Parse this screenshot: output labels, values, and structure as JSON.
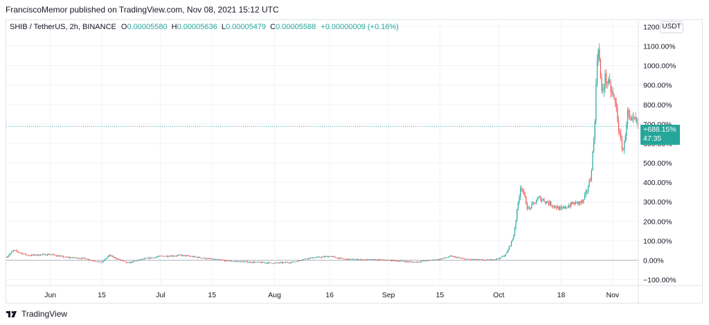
{
  "header": {
    "published_line": "FranciscoMemor published on TradingView.com, Nov 08, 2021 15:12 UTC"
  },
  "legend": {
    "symbol": "SHIB / TetherUS, 2h, BINANCE",
    "open_label": "O",
    "open": "0.00005580",
    "high_label": "H",
    "high": "0.00005636",
    "low_label": "L",
    "low": "0.00005479",
    "close_label": "C",
    "close": "0.00005588",
    "change": "+0.00000009 (+0.16%)"
  },
  "currency_button": "USDT",
  "price_badge": {
    "value": "+688.15%",
    "countdown": "47:35"
  },
  "footer": {
    "brand": "TradingView"
  },
  "colors": {
    "up": "#26a69a",
    "down": "#ef5350",
    "grid": "#f0f3fa",
    "axis_text": "#131722"
  },
  "chart_data": {
    "type": "candlestick",
    "yscale": "percent",
    "ylim": [
      -130,
      1230
    ],
    "y_ticks": [
      -100,
      0,
      100,
      200,
      300,
      400,
      500,
      600,
      700,
      800,
      900,
      1000,
      1100,
      1200
    ],
    "y_tick_labels": [
      "−100.00%",
      "0.00%",
      "100.00%",
      "200.00%",
      "300.00%",
      "400.00%",
      "500.00%",
      "600.00%",
      "700.00%",
      "800.00%",
      "900.00%",
      "1000.00%",
      "1100.00%",
      "1200.00%"
    ],
    "x_range": [
      "2021-05-20",
      "2021-11-08"
    ],
    "x_ticks": [
      {
        "date": "2021-06-01",
        "label": "Jun"
      },
      {
        "date": "2021-06-15",
        "label": "15"
      },
      {
        "date": "2021-07-01",
        "label": "Jul"
      },
      {
        "date": "2021-07-15",
        "label": "15"
      },
      {
        "date": "2021-08-01",
        "label": "Aug"
      },
      {
        "date": "2021-08-16",
        "label": "16"
      },
      {
        "date": "2021-09-01",
        "label": "Sep"
      },
      {
        "date": "2021-09-15",
        "label": "15"
      },
      {
        "date": "2021-10-01",
        "label": "Oct"
      },
      {
        "date": "2021-10-18",
        "label": "18"
      },
      {
        "date": "2021-11-01",
        "label": "Nov"
      }
    ],
    "current_value": 688.15,
    "price_path": [
      {
        "date": "2021-05-20",
        "value": 15
      },
      {
        "date": "2021-05-22",
        "value": 50
      },
      {
        "date": "2021-05-26",
        "value": 25
      },
      {
        "date": "2021-06-01",
        "value": 30
      },
      {
        "date": "2021-06-05",
        "value": 15
      },
      {
        "date": "2021-06-10",
        "value": 10
      },
      {
        "date": "2021-06-15",
        "value": -12
      },
      {
        "date": "2021-06-17",
        "value": 25
      },
      {
        "date": "2021-06-22",
        "value": -15
      },
      {
        "date": "2021-06-26",
        "value": 5
      },
      {
        "date": "2021-07-01",
        "value": 20
      },
      {
        "date": "2021-07-07",
        "value": 25
      },
      {
        "date": "2021-07-15",
        "value": 5
      },
      {
        "date": "2021-07-20",
        "value": -5
      },
      {
        "date": "2021-08-01",
        "value": -15
      },
      {
        "date": "2021-08-06",
        "value": -10
      },
      {
        "date": "2021-08-10",
        "value": 10
      },
      {
        "date": "2021-08-16",
        "value": 20
      },
      {
        "date": "2021-08-20",
        "value": 5
      },
      {
        "date": "2021-09-01",
        "value": 0
      },
      {
        "date": "2021-09-08",
        "value": -10
      },
      {
        "date": "2021-09-15",
        "value": 5
      },
      {
        "date": "2021-09-18",
        "value": 20
      },
      {
        "date": "2021-09-22",
        "value": 5
      },
      {
        "date": "2021-09-28",
        "value": 0
      },
      {
        "date": "2021-10-01",
        "value": 8
      },
      {
        "date": "2021-10-03",
        "value": 30
      },
      {
        "date": "2021-10-05",
        "value": 120
      },
      {
        "date": "2021-10-07",
        "value": 390
      },
      {
        "date": "2021-10-09",
        "value": 260
      },
      {
        "date": "2021-10-12",
        "value": 320
      },
      {
        "date": "2021-10-15",
        "value": 290
      },
      {
        "date": "2021-10-18",
        "value": 260
      },
      {
        "date": "2021-10-21",
        "value": 290
      },
      {
        "date": "2021-10-24",
        "value": 300
      },
      {
        "date": "2021-10-26",
        "value": 420
      },
      {
        "date": "2021-10-27",
        "value": 650
      },
      {
        "date": "2021-10-28",
        "value": 1140
      },
      {
        "date": "2021-10-29",
        "value": 850
      },
      {
        "date": "2021-10-30",
        "value": 940
      },
      {
        "date": "2021-11-01",
        "value": 850
      },
      {
        "date": "2021-11-02",
        "value": 780
      },
      {
        "date": "2021-11-03",
        "value": 620
      },
      {
        "date": "2021-11-04",
        "value": 560
      },
      {
        "date": "2021-11-05",
        "value": 760
      },
      {
        "date": "2021-11-06",
        "value": 700
      },
      {
        "date": "2021-11-07",
        "value": 720
      },
      {
        "date": "2021-11-08",
        "value": 688
      }
    ]
  }
}
